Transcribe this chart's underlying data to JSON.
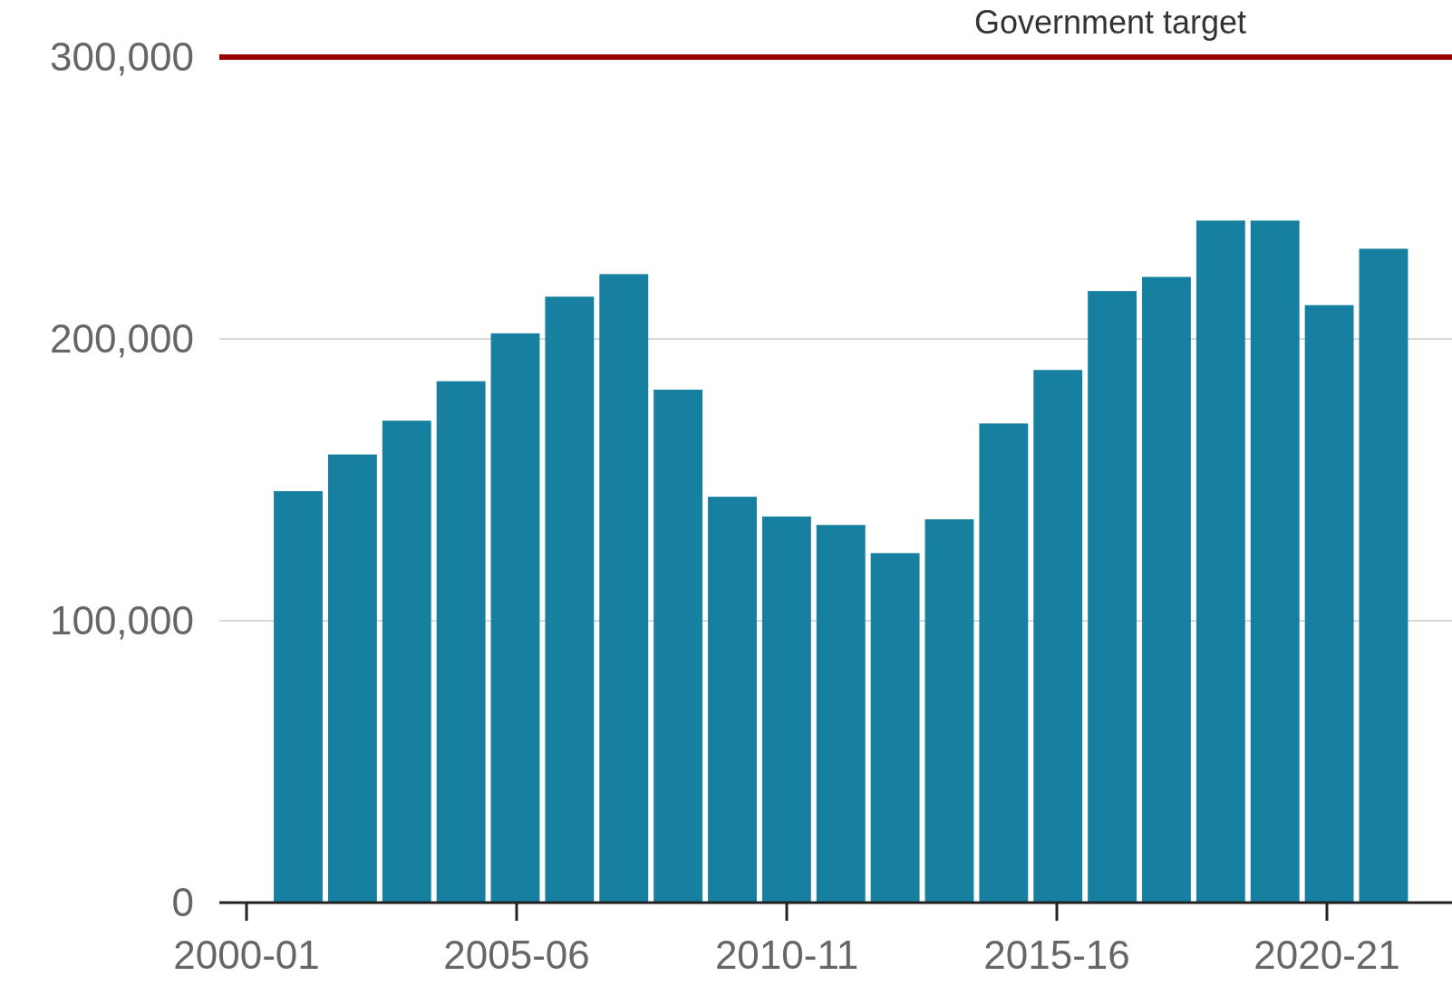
{
  "chart_data": {
    "type": "bar",
    "categories": [
      "2000-01",
      null,
      null,
      null,
      null,
      "2005-06",
      null,
      null,
      null,
      null,
      "2010-11",
      null,
      null,
      null,
      null,
      "2015-16",
      null,
      null,
      null,
      null,
      "2020-21",
      null
    ],
    "values": [
      null,
      146000,
      159000,
      171000,
      185000,
      202000,
      215000,
      223000,
      182000,
      144000,
      137000,
      134000,
      124000,
      136000,
      170000,
      189000,
      217000,
      222000,
      242000,
      242000,
      212000,
      232000
    ],
    "color": "#1780a1",
    "ylim": [
      0,
      300000
    ],
    "yticks": [
      {
        "value": 0,
        "label": "0"
      },
      {
        "value": 100000,
        "label": "100,000"
      },
      {
        "value": 200000,
        "label": "200,000"
      },
      {
        "value": 300000,
        "label": "300,000"
      }
    ],
    "grid": "y",
    "ref_lines": [
      {
        "axis": "y",
        "value": 300000,
        "label": "Government target",
        "color": "#990000"
      }
    ]
  }
}
